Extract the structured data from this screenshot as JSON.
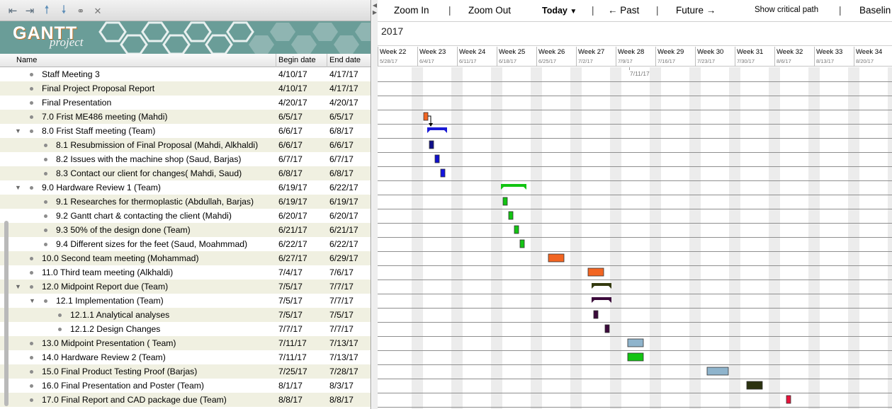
{
  "toolbar": {
    "icons": [
      "outdent-icon",
      "indent-icon",
      "move-up-icon",
      "move-down-icon",
      "link-icon",
      "unlink-icon"
    ]
  },
  "logo": {
    "gantt": "GANTT",
    "project": "project"
  },
  "columns": {
    "name": "Name",
    "begin": "Begin date",
    "end": "End date"
  },
  "tasks": [
    {
      "name": "Staff Meeting 3",
      "begin": "4/10/17",
      "end": "4/17/17",
      "level": 0,
      "expanded": null
    },
    {
      "name": "Final Project Proposal Report",
      "begin": "4/10/17",
      "end": "4/17/17",
      "level": 0,
      "expanded": null
    },
    {
      "name": "Final Presentation",
      "begin": "4/20/17",
      "end": "4/20/17",
      "level": 0,
      "expanded": null
    },
    {
      "name": "7.0 Frist ME486 meeting (Mahdi)",
      "begin": "6/5/17",
      "end": "6/5/17",
      "level": 0,
      "expanded": null
    },
    {
      "name": "8.0 Frist Staff meeting (Team)",
      "begin": "6/6/17",
      "end": "6/8/17",
      "level": 0,
      "expanded": true
    },
    {
      "name": "8.1 Resubmission of Final Proposal (Mahdi, Alkhaldi)",
      "begin": "6/6/17",
      "end": "6/6/17",
      "level": 1,
      "expanded": null
    },
    {
      "name": "8.2 Issues with the machine shop (Saud, Barjas)",
      "begin": "6/7/17",
      "end": "6/7/17",
      "level": 1,
      "expanded": null
    },
    {
      "name": "8.3 Contact our client for changes( Mahdi, Saud)",
      "begin": "6/8/17",
      "end": "6/8/17",
      "level": 1,
      "expanded": null
    },
    {
      "name": "9.0 Hardware Review 1 (Team)",
      "begin": "6/19/17",
      "end": "6/22/17",
      "level": 0,
      "expanded": true
    },
    {
      "name": "9.1 Researches for thermoplastic (Abdullah, Barjas)",
      "begin": "6/19/17",
      "end": "6/19/17",
      "level": 1,
      "expanded": null
    },
    {
      "name": "9.2 Gantt chart & contacting the client (Mahdi)",
      "begin": "6/20/17",
      "end": "6/20/17",
      "level": 1,
      "expanded": null
    },
    {
      "name": "9.3 50% of the design done (Team)",
      "begin": "6/21/17",
      "end": "6/21/17",
      "level": 1,
      "expanded": null
    },
    {
      "name": "9.4 Different sizes for the feet (Saud, Moahmmad)",
      "begin": "6/22/17",
      "end": "6/22/17",
      "level": 1,
      "expanded": null
    },
    {
      "name": "10.0 Second team meeting (Mohammad)",
      "begin": "6/27/17",
      "end": "6/29/17",
      "level": 0,
      "expanded": null
    },
    {
      "name": "11.0 Third team meeting (Alkhaldi)",
      "begin": "7/4/17",
      "end": "7/6/17",
      "level": 0,
      "expanded": null
    },
    {
      "name": "12.0 Midpoint Report due (Team)",
      "begin": "7/5/17",
      "end": "7/7/17",
      "level": 0,
      "expanded": true
    },
    {
      "name": "12.1 Implementation (Team)",
      "begin": "7/5/17",
      "end": "7/7/17",
      "level": 1,
      "expanded": true
    },
    {
      "name": "12.1.1 Analytical analyses",
      "begin": "7/5/17",
      "end": "7/5/17",
      "level": 2,
      "expanded": null
    },
    {
      "name": "12.1.2 Design Changes",
      "begin": "7/7/17",
      "end": "7/7/17",
      "level": 2,
      "expanded": null
    },
    {
      "name": "13.0 Midpoint Presentation ( Team)",
      "begin": "7/11/17",
      "end": "7/13/17",
      "level": 0,
      "expanded": null
    },
    {
      "name": "14.0 Hardware Review 2 (Team)",
      "begin": "7/11/17",
      "end": "7/13/17",
      "level": 0,
      "expanded": null
    },
    {
      "name": "15.0 Final Product Testing Proof (Barjas)",
      "begin": "7/25/17",
      "end": "7/28/17",
      "level": 0,
      "expanded": null
    },
    {
      "name": "16.0 Final Presentation and Poster (Team)",
      "begin": "8/1/17",
      "end": "8/3/17",
      "level": 0,
      "expanded": null
    },
    {
      "name": "17.0 Final Report and CAD package due (Team)",
      "begin": "8/8/17",
      "end": "8/8/17",
      "level": 0,
      "expanded": null
    }
  ],
  "chart_toolbar": {
    "zoom_in": "Zoom In",
    "zoom_out": "Zoom Out",
    "today": "Today",
    "past": "← Past",
    "future": "Future →",
    "critical_path": "Show critical path",
    "baseline": "Baselin"
  },
  "timeline": {
    "year": "2017",
    "weeks": [
      {
        "label": "Week 22",
        "date": "5/28/17"
      },
      {
        "label": "Week 23",
        "date": "6/4/17"
      },
      {
        "label": "Week 24",
        "date": "6/11/17"
      },
      {
        "label": "Week 25",
        "date": "6/18/17"
      },
      {
        "label": "Week 26",
        "date": "6/25/17"
      },
      {
        "label": "Week 27",
        "date": "7/2/17"
      },
      {
        "label": "Week 28",
        "date": "7/9/17"
      },
      {
        "label": "Week 29",
        "date": "7/16/17"
      },
      {
        "label": "Week 30",
        "date": "7/23/17"
      },
      {
        "label": "Week 31",
        "date": "7/30/17"
      },
      {
        "label": "Week 32",
        "date": "8/6/17"
      },
      {
        "label": "Week 33",
        "date": "8/13/17"
      },
      {
        "label": "Week 34",
        "date": "8/20/17"
      }
    ],
    "marker_label": "7/11/17"
  },
  "bars": [
    {
      "row": 3,
      "start": "6/5/17",
      "end": "6/5/17",
      "kind": "task",
      "color": "#f26522"
    },
    {
      "row": 4,
      "start": "6/6/17",
      "end": "6/8/17",
      "kind": "summary",
      "color": "#1a1ad6"
    },
    {
      "row": 5,
      "start": "6/6/17",
      "end": "6/6/17",
      "kind": "task",
      "color": "#0f0f8a"
    },
    {
      "row": 6,
      "start": "6/7/17",
      "end": "6/7/17",
      "kind": "task",
      "color": "#1010cc"
    },
    {
      "row": 7,
      "start": "6/8/17",
      "end": "6/8/17",
      "kind": "task",
      "color": "#1414e0"
    },
    {
      "row": 8,
      "start": "6/19/17",
      "end": "6/22/17",
      "kind": "summary",
      "color": "#11c411"
    },
    {
      "row": 9,
      "start": "6/19/17",
      "end": "6/19/17",
      "kind": "task",
      "color": "#13c413"
    },
    {
      "row": 10,
      "start": "6/20/17",
      "end": "6/20/17",
      "kind": "task",
      "color": "#13c413"
    },
    {
      "row": 11,
      "start": "6/21/17",
      "end": "6/21/17",
      "kind": "task",
      "color": "#13c413"
    },
    {
      "row": 12,
      "start": "6/22/17",
      "end": "6/22/17",
      "kind": "task",
      "color": "#13c413"
    },
    {
      "row": 13,
      "start": "6/27/17",
      "end": "6/29/17",
      "kind": "task",
      "color": "#f26522"
    },
    {
      "row": 14,
      "start": "7/4/17",
      "end": "7/6/17",
      "kind": "task",
      "color": "#f26522"
    },
    {
      "row": 15,
      "start": "7/5/17",
      "end": "7/7/17",
      "kind": "summary",
      "color": "#343a0f"
    },
    {
      "row": 16,
      "start": "7/5/17",
      "end": "7/7/17",
      "kind": "summary",
      "color": "#3b0a3b"
    },
    {
      "row": 17,
      "start": "7/5/17",
      "end": "7/5/17",
      "kind": "task",
      "color": "#3b0a3b"
    },
    {
      "row": 18,
      "start": "7/7/17",
      "end": "7/7/17",
      "kind": "task",
      "color": "#3b0a3b"
    },
    {
      "row": 19,
      "start": "7/11/17",
      "end": "7/13/17",
      "kind": "task",
      "color": "#8fb4cc"
    },
    {
      "row": 20,
      "start": "7/11/17",
      "end": "7/13/17",
      "kind": "task",
      "color": "#13c413"
    },
    {
      "row": 21,
      "start": "7/25/17",
      "end": "7/28/17",
      "kind": "task",
      "color": "#8fb4cc"
    },
    {
      "row": 22,
      "start": "8/1/17",
      "end": "8/3/17",
      "kind": "task",
      "color": "#2b3210"
    },
    {
      "row": 23,
      "start": "8/8/17",
      "end": "8/8/17",
      "kind": "task",
      "color": "#e8143c"
    }
  ],
  "dependencies": [
    {
      "from_row": 3,
      "to_row": 4
    }
  ]
}
